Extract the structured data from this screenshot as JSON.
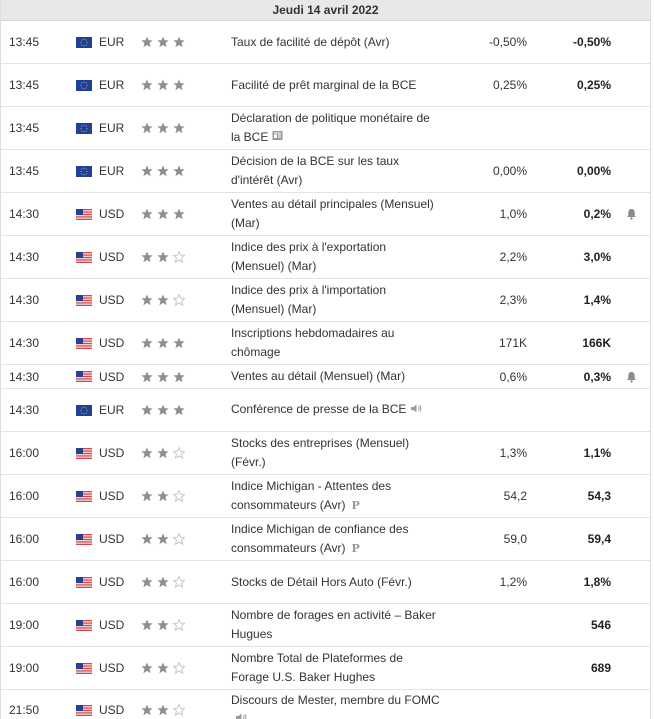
{
  "header": {
    "date": "Jeudi 14 avril 2022"
  },
  "colors": {
    "star_on": "#8f8f8f",
    "star_off": "#c8c8c8",
    "header_bg": "#e8e8e8"
  },
  "rows": [
    {
      "time": "13:45",
      "flag": "eu-flag-icon",
      "currency": "EUR",
      "importance": 3,
      "event": "Taux de facilité de dépôt (Avr)",
      "actual": "-0,50%",
      "forecast": "-0,50%",
      "extra_icon": "",
      "bell": false
    },
    {
      "time": "13:45",
      "flag": "eu-flag-icon",
      "currency": "EUR",
      "importance": 3,
      "event": "Facilité de prêt marginal de la BCE",
      "actual": "0,25%",
      "forecast": "0,25%",
      "extra_icon": "",
      "bell": false
    },
    {
      "time": "13:45",
      "flag": "eu-flag-icon",
      "currency": "EUR",
      "importance": 3,
      "event": "Déclaration de politique monétaire de la BCE",
      "actual": "",
      "forecast": "",
      "extra_icon": "document-icon",
      "bell": false
    },
    {
      "time": "13:45",
      "flag": "eu-flag-icon",
      "currency": "EUR",
      "importance": 3,
      "event": "Décision de la BCE sur les taux d'intérêt (Avr)",
      "actual": "0,00%",
      "forecast": "0,00%",
      "extra_icon": "",
      "bell": false
    },
    {
      "time": "14:30",
      "flag": "us-flag-icon",
      "currency": "USD",
      "importance": 3,
      "event": "Ventes au détail principales (Mensuel) (Mar)",
      "actual": "1,0%",
      "forecast": "0,2%",
      "extra_icon": "",
      "bell": true
    },
    {
      "time": "14:30",
      "flag": "us-flag-icon",
      "currency": "USD",
      "importance": 2,
      "event": "Indice des prix à l'exportation (Mensuel) (Mar)",
      "actual": "2,2%",
      "forecast": "3,0%",
      "extra_icon": "",
      "bell": false
    },
    {
      "time": "14:30",
      "flag": "us-flag-icon",
      "currency": "USD",
      "importance": 2,
      "event": "Indice des prix à l'importation (Mensuel) (Mar)",
      "actual": "2,3%",
      "forecast": "1,4%",
      "extra_icon": "",
      "bell": false
    },
    {
      "time": "14:30",
      "flag": "us-flag-icon",
      "currency": "USD",
      "importance": 3,
      "event": "Inscriptions hebdomadaires au chômage",
      "actual": "171K",
      "forecast": "166K",
      "extra_icon": "",
      "bell": false
    },
    {
      "time": "14:30",
      "flag": "us-flag-icon",
      "currency": "USD",
      "importance": 3,
      "event": "Ventes au détail (Mensuel) (Mar)",
      "actual": "0,6%",
      "forecast": "0,3%",
      "extra_icon": "",
      "bell": true
    },
    {
      "time": "14:30",
      "flag": "eu-flag-icon",
      "currency": "EUR",
      "importance": 3,
      "event": "Conférence de presse de la BCE",
      "actual": "",
      "forecast": "",
      "extra_icon": "speaker-icon",
      "bell": false
    },
    {
      "time": "16:00",
      "flag": "us-flag-icon",
      "currency": "USD",
      "importance": 2,
      "event": "Stocks des entreprises (Mensuel) (Févr.)",
      "actual": "1,3%",
      "forecast": "1,1%",
      "extra_icon": "",
      "bell": false
    },
    {
      "time": "16:00",
      "flag": "us-flag-icon",
      "currency": "USD",
      "importance": 2,
      "event": "Indice Michigan - Attentes des consommateurs (Avr)",
      "actual": "54,2",
      "forecast": "54,3",
      "extra_icon": "preliminary-icon",
      "bell": false
    },
    {
      "time": "16:00",
      "flag": "us-flag-icon",
      "currency": "USD",
      "importance": 2,
      "event": "Indice Michigan de confiance des consommateurs (Avr)",
      "actual": "59,0",
      "forecast": "59,4",
      "extra_icon": "preliminary-icon",
      "bell": false
    },
    {
      "time": "16:00",
      "flag": "us-flag-icon",
      "currency": "USD",
      "importance": 2,
      "event": "Stocks de Détail Hors Auto (Févr.)",
      "actual": "1,2%",
      "forecast": "1,8%",
      "extra_icon": "",
      "bell": false
    },
    {
      "time": "19:00",
      "flag": "us-flag-icon",
      "currency": "USD",
      "importance": 2,
      "event": "Nombre de forages en activité – Baker Hugues",
      "actual": "",
      "forecast": "546",
      "extra_icon": "",
      "bell": false
    },
    {
      "time": "19:00",
      "flag": "us-flag-icon",
      "currency": "USD",
      "importance": 2,
      "event": "Nombre Total de Plateformes de Forage U.S. Baker Hughes",
      "actual": "",
      "forecast": "689",
      "extra_icon": "",
      "bell": false
    },
    {
      "time": "21:50",
      "flag": "us-flag-icon",
      "currency": "USD",
      "importance": 2,
      "event": "Discours de Mester, membre du FOMC",
      "actual": "",
      "forecast": "",
      "extra_icon": "speaker-icon",
      "bell": false
    }
  ]
}
